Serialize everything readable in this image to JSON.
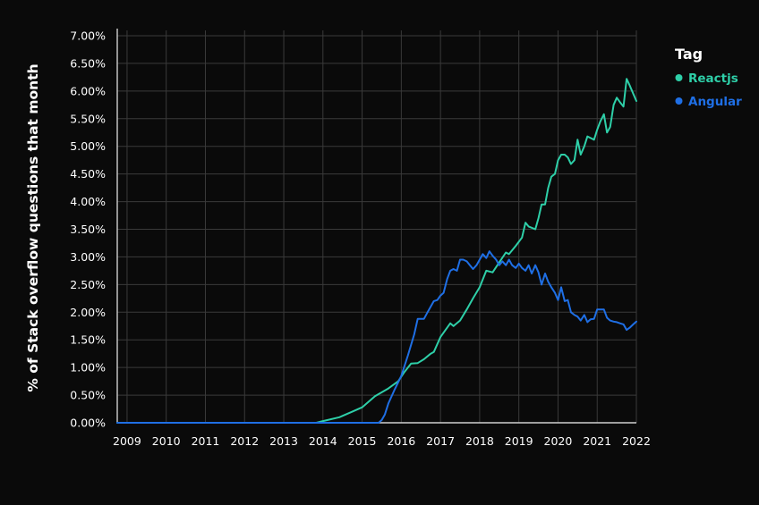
{
  "chart_data": {
    "type": "line",
    "ylabel": "% of Stack overflow questions that month",
    "xlabel": "",
    "title": "",
    "x_ticks": [
      "2009",
      "2010",
      "2011",
      "2012",
      "2013",
      "2014",
      "2015",
      "2016",
      "2017",
      "2018",
      "2019",
      "2020",
      "2021",
      "2022"
    ],
    "y_ticks": [
      "0.00%",
      "0.50%",
      "1.00%",
      "1.50%",
      "2.00%",
      "2.50%",
      "3.00%",
      "3.50%",
      "4.00%",
      "4.50%",
      "5.00%",
      "5.50%",
      "6.00%",
      "6.50%",
      "7.00%"
    ],
    "xlim": [
      2008.75,
      2022.0
    ],
    "ylim": [
      0,
      7.0
    ],
    "grid": true,
    "legend": {
      "title": "Tag",
      "placement": "top-right"
    },
    "series": [
      {
        "name": "Reactjs",
        "color": "#2ecfa8",
        "points": [
          [
            2008.75,
            0.0
          ],
          [
            2013.83,
            0.0
          ],
          [
            2014.0,
            0.03
          ],
          [
            2014.42,
            0.1
          ],
          [
            2014.75,
            0.2
          ],
          [
            2015.0,
            0.28
          ],
          [
            2015.33,
            0.48
          ],
          [
            2015.67,
            0.62
          ],
          [
            2015.92,
            0.75
          ],
          [
            2016.08,
            0.92
          ],
          [
            2016.25,
            1.07
          ],
          [
            2016.42,
            1.08
          ],
          [
            2016.58,
            1.15
          ],
          [
            2016.75,
            1.25
          ],
          [
            2016.83,
            1.28
          ],
          [
            2017.0,
            1.55
          ],
          [
            2017.25,
            1.8
          ],
          [
            2017.33,
            1.75
          ],
          [
            2017.5,
            1.85
          ],
          [
            2017.67,
            2.05
          ],
          [
            2017.83,
            2.25
          ],
          [
            2018.0,
            2.45
          ],
          [
            2018.17,
            2.75
          ],
          [
            2018.33,
            2.72
          ],
          [
            2018.5,
            2.9
          ],
          [
            2018.67,
            3.08
          ],
          [
            2018.75,
            3.05
          ],
          [
            2018.92,
            3.2
          ],
          [
            2019.08,
            3.35
          ],
          [
            2019.17,
            3.62
          ],
          [
            2019.25,
            3.55
          ],
          [
            2019.42,
            3.5
          ],
          [
            2019.5,
            3.7
          ],
          [
            2019.58,
            3.95
          ],
          [
            2019.67,
            3.95
          ],
          [
            2019.75,
            4.25
          ],
          [
            2019.83,
            4.45
          ],
          [
            2019.92,
            4.5
          ],
          [
            2020.0,
            4.75
          ],
          [
            2020.08,
            4.85
          ],
          [
            2020.17,
            4.85
          ],
          [
            2020.25,
            4.8
          ],
          [
            2020.33,
            4.68
          ],
          [
            2020.42,
            4.75
          ],
          [
            2020.5,
            5.12
          ],
          [
            2020.58,
            4.85
          ],
          [
            2020.67,
            5.0
          ],
          [
            2020.75,
            5.18
          ],
          [
            2020.83,
            5.15
          ],
          [
            2020.92,
            5.12
          ],
          [
            2021.0,
            5.3
          ],
          [
            2021.08,
            5.45
          ],
          [
            2021.17,
            5.58
          ],
          [
            2021.25,
            5.25
          ],
          [
            2021.33,
            5.35
          ],
          [
            2021.42,
            5.75
          ],
          [
            2021.5,
            5.88
          ],
          [
            2021.58,
            5.8
          ],
          [
            2021.67,
            5.72
          ],
          [
            2021.75,
            6.22
          ],
          [
            2021.83,
            6.1
          ],
          [
            2021.92,
            5.95
          ],
          [
            2022.0,
            5.82
          ]
        ]
      },
      {
        "name": "Angular",
        "color": "#1f6fe5",
        "points": [
          [
            2008.75,
            0.0
          ],
          [
            2015.42,
            0.0
          ],
          [
            2015.5,
            0.05
          ],
          [
            2015.58,
            0.15
          ],
          [
            2015.67,
            0.35
          ],
          [
            2015.83,
            0.6
          ],
          [
            2016.0,
            0.85
          ],
          [
            2016.17,
            1.22
          ],
          [
            2016.33,
            1.6
          ],
          [
            2016.42,
            1.88
          ],
          [
            2016.58,
            1.88
          ],
          [
            2016.67,
            2.0
          ],
          [
            2016.83,
            2.2
          ],
          [
            2016.92,
            2.22
          ],
          [
            2017.0,
            2.3
          ],
          [
            2017.08,
            2.35
          ],
          [
            2017.17,
            2.6
          ],
          [
            2017.25,
            2.75
          ],
          [
            2017.33,
            2.78
          ],
          [
            2017.42,
            2.75
          ],
          [
            2017.5,
            2.95
          ],
          [
            2017.58,
            2.95
          ],
          [
            2017.67,
            2.92
          ],
          [
            2017.75,
            2.85
          ],
          [
            2017.83,
            2.78
          ],
          [
            2017.92,
            2.85
          ],
          [
            2018.0,
            2.95
          ],
          [
            2018.08,
            3.05
          ],
          [
            2018.17,
            2.98
          ],
          [
            2018.25,
            3.1
          ],
          [
            2018.33,
            3.02
          ],
          [
            2018.42,
            2.95
          ],
          [
            2018.5,
            2.85
          ],
          [
            2018.58,
            2.92
          ],
          [
            2018.67,
            2.85
          ],
          [
            2018.75,
            2.95
          ],
          [
            2018.83,
            2.85
          ],
          [
            2018.92,
            2.8
          ],
          [
            2019.0,
            2.88
          ],
          [
            2019.08,
            2.8
          ],
          [
            2019.17,
            2.75
          ],
          [
            2019.25,
            2.85
          ],
          [
            2019.33,
            2.7
          ],
          [
            2019.42,
            2.85
          ],
          [
            2019.5,
            2.72
          ],
          [
            2019.58,
            2.5
          ],
          [
            2019.67,
            2.7
          ],
          [
            2019.75,
            2.55
          ],
          [
            2019.83,
            2.45
          ],
          [
            2019.92,
            2.35
          ],
          [
            2020.0,
            2.22
          ],
          [
            2020.08,
            2.45
          ],
          [
            2020.17,
            2.2
          ],
          [
            2020.25,
            2.22
          ],
          [
            2020.33,
            2.0
          ],
          [
            2020.42,
            1.95
          ],
          [
            2020.5,
            1.92
          ],
          [
            2020.58,
            1.85
          ],
          [
            2020.67,
            1.95
          ],
          [
            2020.75,
            1.82
          ],
          [
            2020.83,
            1.87
          ],
          [
            2020.92,
            1.88
          ],
          [
            2021.0,
            2.05
          ],
          [
            2021.08,
            2.05
          ],
          [
            2021.17,
            2.05
          ],
          [
            2021.25,
            1.9
          ],
          [
            2021.33,
            1.85
          ],
          [
            2021.42,
            1.83
          ],
          [
            2021.5,
            1.82
          ],
          [
            2021.58,
            1.8
          ],
          [
            2021.67,
            1.78
          ],
          [
            2021.75,
            1.68
          ],
          [
            2021.83,
            1.72
          ],
          [
            2021.92,
            1.78
          ],
          [
            2022.0,
            1.83
          ]
        ]
      }
    ]
  }
}
